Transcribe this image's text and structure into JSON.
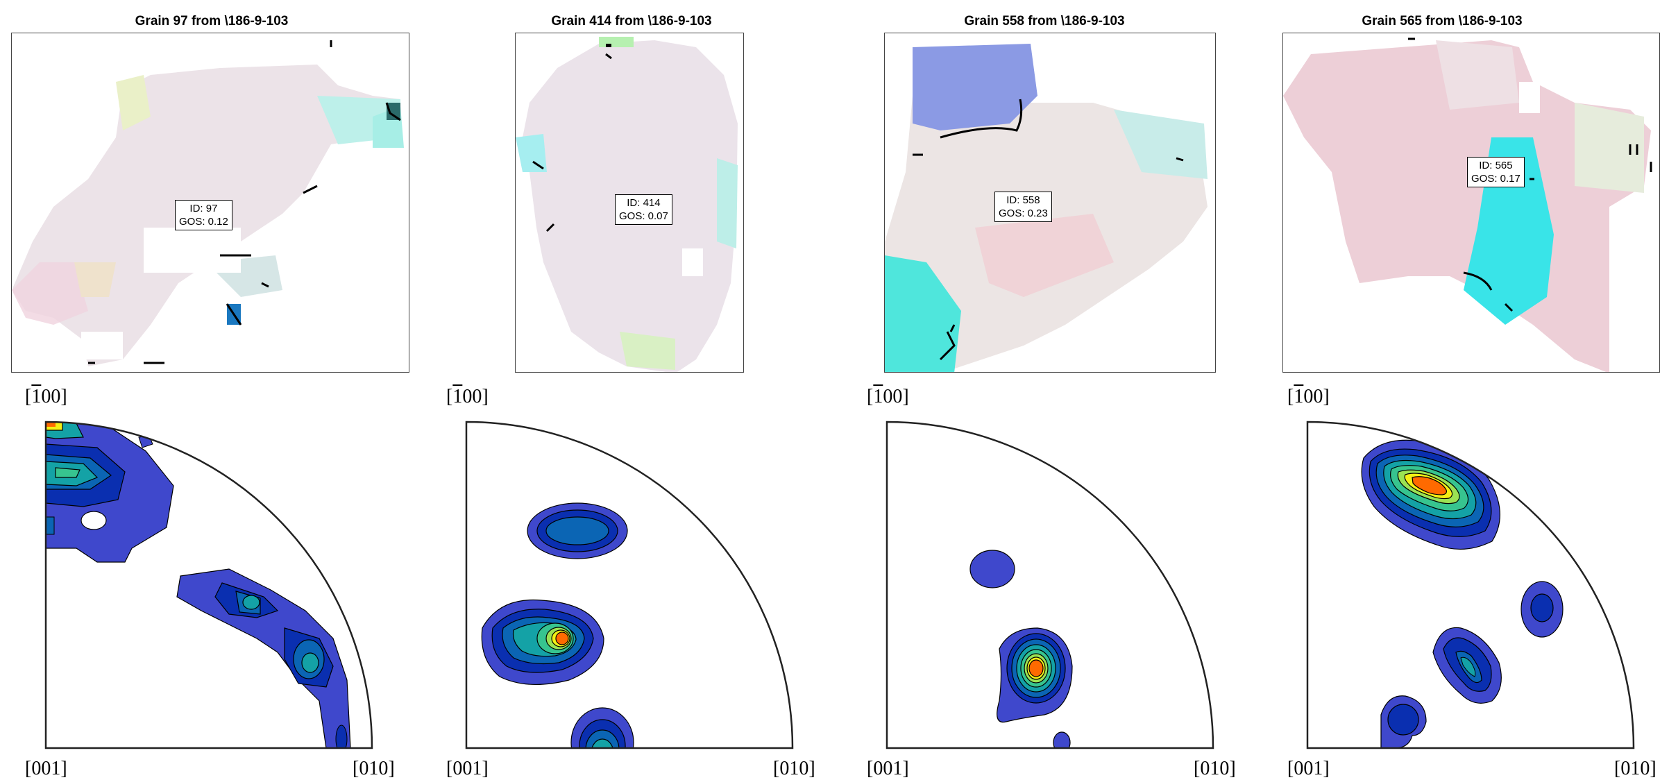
{
  "panels": [
    {
      "title": "Grain 97 from \\186-9-103",
      "label_id": "ID: 97",
      "label_gos": "GOS: 0.12"
    },
    {
      "title": "Grain 414 from \\186-9-103",
      "label_id": "ID: 414",
      "label_gos": "GOS: 0.07"
    },
    {
      "title": "Grain 558 from \\186-9-103",
      "label_id": "ID: 558",
      "label_gos": "GOS: 0.23"
    },
    {
      "title": "Grain 565 from \\186-9-103",
      "label_id": "ID: 565",
      "label_gos": "GOS: 0.17"
    }
  ],
  "ipf": {
    "top_label_bar": "1",
    "top_label_rest": "00",
    "bottom_left_label": "[001]",
    "bottom_right_label": "[010]"
  },
  "colors": {
    "contour_levels": [
      "#3f48cc",
      "#0a2fb0",
      "#0b65b4",
      "#14a2a6",
      "#37c48f",
      "#9be253",
      "#f4f014",
      "#ff6a00"
    ],
    "map_pink": "#e9c9d6",
    "map_cyan": "#33e0e0",
    "map_blue": "#8a98e6",
    "boundary": "#000000"
  }
}
